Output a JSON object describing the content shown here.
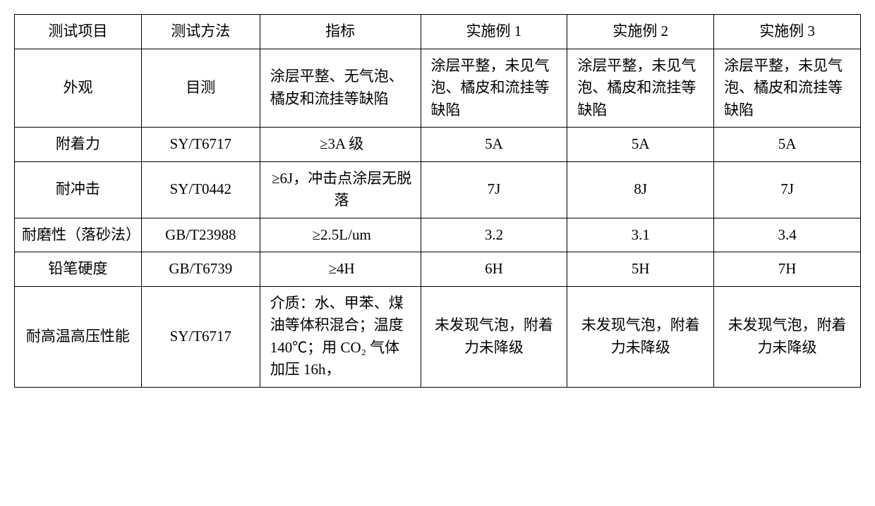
{
  "table": {
    "columns": [
      "测试项目",
      "测试方法",
      "指标",
      "实施例 1",
      "实施例 2",
      "实施例 3"
    ],
    "column_widths_pct": [
      15,
      14,
      19,
      17.33,
      17.33,
      17.33
    ],
    "border_color": "#000000",
    "background_color": "#ffffff",
    "font_family": "SimSun",
    "header_fontsize": 21,
    "cell_fontsize": 21,
    "rows": [
      {
        "item": "外观",
        "method": "目测",
        "spec": "涂层平整、无气泡、橘皮和流挂等缺陷",
        "ex1": "涂层平整，未见气泡、橘皮和流挂等缺陷",
        "ex2": "涂层平整，未见气泡、橘皮和流挂等缺陷",
        "ex3": "涂层平整，未见气泡、橘皮和流挂等缺陷",
        "align_ex": "left"
      },
      {
        "item": "附着力",
        "method": "SY/T6717",
        "spec": "≥3A 级",
        "ex1": "5A",
        "ex2": "5A",
        "ex3": "5A",
        "align_ex": "center",
        "spec_align": "center"
      },
      {
        "item": "耐冲击",
        "method": "SY/T0442",
        "spec": "≥6J，冲击点涂层无脱落",
        "ex1": "7J",
        "ex2": "8J",
        "ex3": "7J",
        "align_ex": "center",
        "spec_align": "center"
      },
      {
        "item": "耐磨性（落砂法）",
        "method": "GB/T23988",
        "spec": "≥2.5L/um",
        "ex1": "3.2",
        "ex2": "3.1",
        "ex3": "3.4",
        "align_ex": "center",
        "spec_align": "center"
      },
      {
        "item": "铅笔硬度",
        "method": "GB/T6739",
        "spec": "≥4H",
        "ex1": "6H",
        "ex2": "5H",
        "ex3": "7H",
        "align_ex": "center",
        "spec_align": "center"
      },
      {
        "item": "耐高温高压性能",
        "method": "SY/T6717",
        "spec": "介质：水、甲苯、煤油等体积混合；温度140℃；用 CO₂ 气体加压 16h，",
        "ex1": "未发现气泡，附着力未降级",
        "ex2": "未发现气泡，附着力未降级",
        "ex3": "未发现气泡，附着力未降级",
        "align_ex": "center"
      }
    ]
  }
}
